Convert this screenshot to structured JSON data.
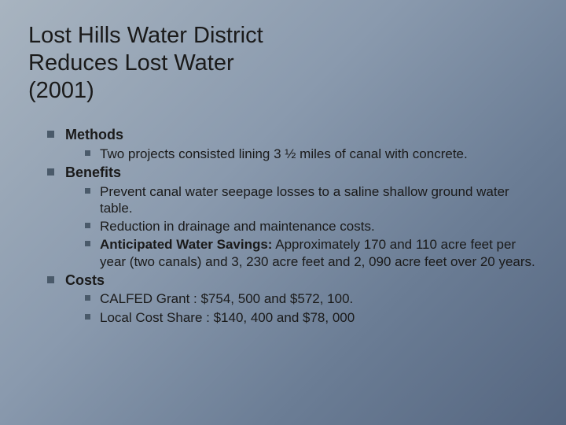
{
  "colors": {
    "bullet": "#4a5a6a",
    "text": "#1a1a1a",
    "bg_start": "#a8b4c0",
    "bg_end": "#556680"
  },
  "typography": {
    "title_fontsize": 29,
    "l1_fontsize": 18,
    "l2_fontsize": 17,
    "font_family": "Arial"
  },
  "title": {
    "line1": "Lost Hills Water District",
    "line2": "Reduces Lost Water",
    "line3": "(2001)"
  },
  "sections": {
    "methods": {
      "heading": "Methods",
      "items": {
        "i0": "Two projects consisted lining 3 ½ miles of canal with concrete."
      }
    },
    "benefits": {
      "heading": "Benefits",
      "items": {
        "i0": "Prevent canal water seepage losses to a saline shallow ground water table.",
        "i1": "Reduction in drainage and maintenance costs.",
        "i2_label": "Anticipated Water Savings:",
        "i2_rest": "  Approximately 170 and 110 acre feet per year (two canals) and 3, 230 acre feet and 2, 090 acre feet over 20 years."
      }
    },
    "costs": {
      "heading": "Costs",
      "items": {
        "i0": "CALFED Grant     : $754, 500 and $572, 100.",
        "i1": "Local Cost Share : $140, 400 and $78, 000"
      }
    }
  }
}
